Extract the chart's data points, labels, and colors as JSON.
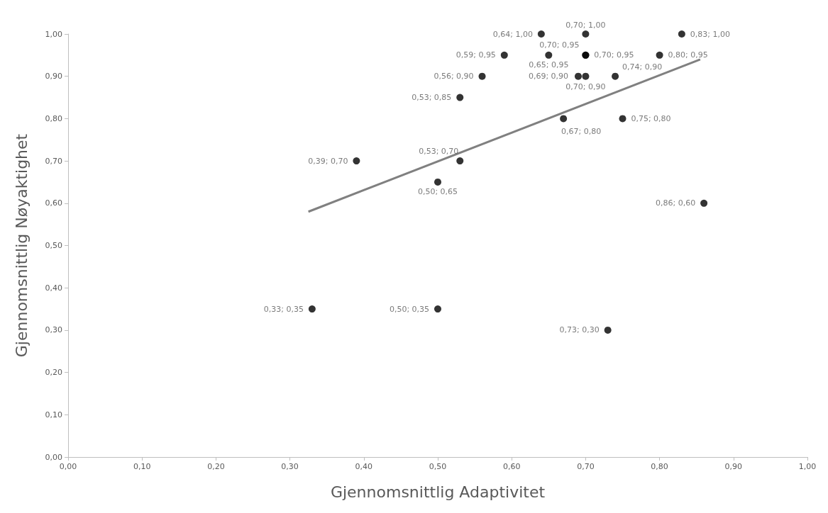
{
  "chart_data": {
    "type": "scatter",
    "xlabel": "Gjennomsnittlig Adaptivitet",
    "ylabel": "Gjennomsnittlig Nøyaktighet",
    "xlim": [
      0,
      1
    ],
    "ylim": [
      0,
      1
    ],
    "xticks": [
      {
        "value": 0,
        "label": "0,00"
      },
      {
        "value": 0.1,
        "label": "0,10"
      },
      {
        "value": 0.2,
        "label": "0,20"
      },
      {
        "value": 0.3,
        "label": "0,30"
      },
      {
        "value": 0.4,
        "label": "0,40"
      },
      {
        "value": 0.5,
        "label": "0,50"
      },
      {
        "value": 0.6,
        "label": "0,60"
      },
      {
        "value": 0.7,
        "label": "0,70"
      },
      {
        "value": 0.8,
        "label": "0,80"
      },
      {
        "value": 0.9,
        "label": "0,90"
      },
      {
        "value": 1,
        "label": "1,00"
      }
    ],
    "yticks": [
      {
        "value": 0,
        "label": "0,00"
      },
      {
        "value": 0.1,
        "label": "0,10"
      },
      {
        "value": 0.2,
        "label": "0,20"
      },
      {
        "value": 0.3,
        "label": "0,30"
      },
      {
        "value": 0.4,
        "label": "0,40"
      },
      {
        "value": 0.5,
        "label": "0,50"
      },
      {
        "value": 0.6,
        "label": "0,60"
      },
      {
        "value": 0.7,
        "label": "0,70"
      },
      {
        "value": 0.8,
        "label": "0,80"
      },
      {
        "value": 0.9,
        "label": "0,90"
      },
      {
        "value": 1,
        "label": "1,00"
      }
    ],
    "grid": false,
    "legend": false,
    "marker": "circle",
    "series": [
      {
        "type": "scatter",
        "color": "#000000",
        "x": [
          0.83,
          0.8,
          0.7,
          0.7,
          0.7,
          0.64,
          0.65,
          0.59,
          0.56,
          0.53,
          0.69,
          0.7,
          0.74,
          0.67,
          0.75,
          0.53,
          0.39,
          0.5,
          0.86,
          0.33,
          0.5,
          0.73
        ],
        "values": [
          1.0,
          0.95,
          1.0,
          0.95,
          0.95,
          1.0,
          0.95,
          0.95,
          0.9,
          0.85,
          0.9,
          0.9,
          0.9,
          0.8,
          0.8,
          0.7,
          0.7,
          0.65,
          0.6,
          0.35,
          0.35,
          0.3
        ],
        "value_labels": [
          "0,83; 1,00",
          "0,80; 0,95",
          "0,70; 1,00",
          "0,70; 0,95",
          "0,70; 0,95",
          "0,64; 1,00",
          "0,65; 0,95",
          "0,59; 0,95",
          "0,56; 0,90",
          "0,53; 0,85",
          "0,69; 0,90",
          "0,70; 0,90",
          "0,74; 0,90",
          "0,67; 0,80",
          "0,75; 0,80",
          "0,53; 0,70",
          "0,39; 0,70",
          "0,50; 0,65",
          "0,86; 0,60",
          "0,33; 0,35",
          "0,50; 0,35",
          "0,73; 0,30"
        ]
      },
      {
        "type": "line",
        "color": "#808080",
        "marker": "none",
        "x": [
          0.325,
          0.855
        ],
        "values": [
          0.58,
          0.94
        ]
      }
    ]
  }
}
